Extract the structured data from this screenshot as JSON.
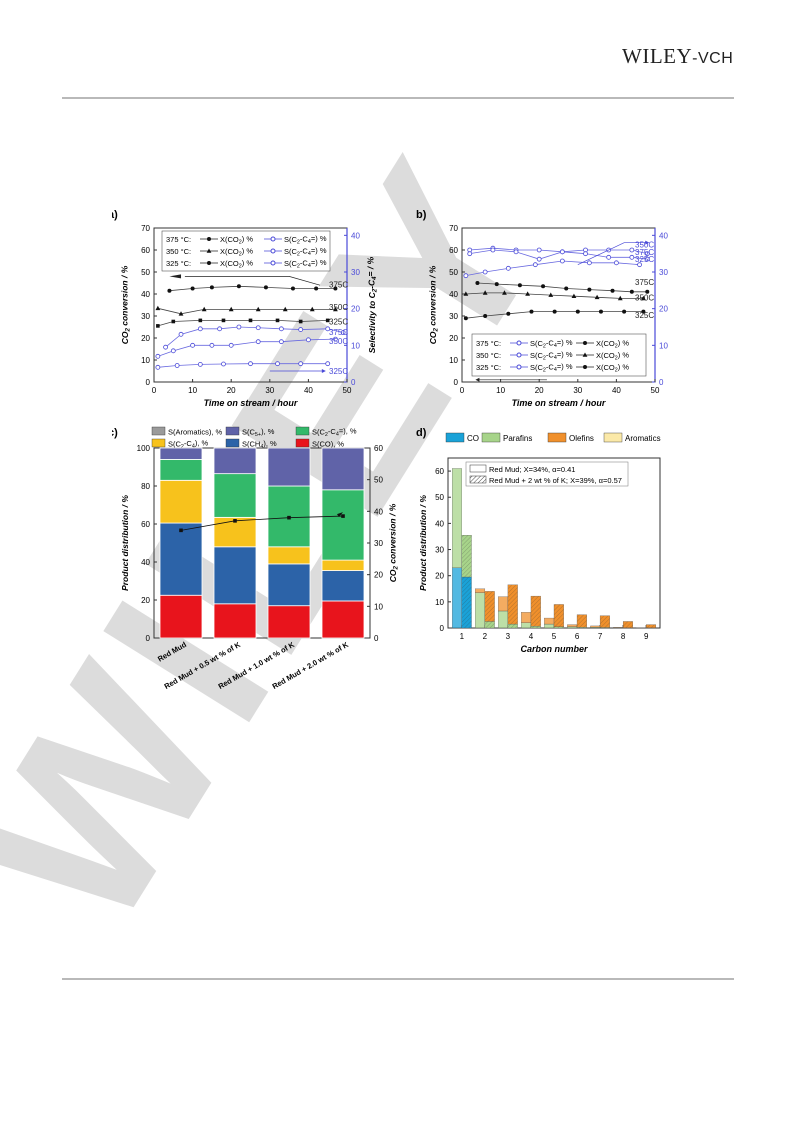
{
  "header": {
    "logo_main": "WILEY",
    "logo_suffix": "-VCH"
  },
  "watermark_text": "WILEY",
  "chart_data": [
    {
      "panel": "a)",
      "type": "line",
      "xlabel": "Time on stream / hour",
      "ylabel": "CO2 conversion / %",
      "y2label": "Selectivity to C2-C4= / %",
      "xlim": [
        0,
        50
      ],
      "ylim": [
        0,
        70
      ],
      "y2lim": [
        0,
        42
      ],
      "xticks": [
        "0",
        "10",
        "20",
        "30",
        "40",
        "50"
      ],
      "yticks": [
        "0",
        "10",
        "20",
        "30",
        "40",
        "50",
        "60",
        "70"
      ],
      "y2ticks": [
        "0",
        "10",
        "20",
        "30",
        "40"
      ],
      "legend": [
        {
          "temp": "375 °C:",
          "conv": "X(CO2) %",
          "sel": "S(C2-C4=) %"
        },
        {
          "temp": "350 °C:",
          "conv": "X(CO2) %",
          "sel": "S(C2-C4=) %"
        },
        {
          "temp": "325 °C:",
          "conv": "X(CO2) %",
          "sel": "S(C2-C4=) %"
        }
      ],
      "right_labels": [
        "375C",
        "350C",
        "325C",
        "375C",
        "350C",
        "325C"
      ],
      "series": [
        {
          "name": "X(CO2) 375",
          "axis": "left",
          "marker": "circle",
          "x": [
            4,
            10,
            15,
            22,
            29,
            36,
            42,
            47
          ],
          "y": [
            41.5,
            42.5,
            43,
            43.5,
            43,
            42.5,
            42.5,
            42.5
          ]
        },
        {
          "name": "X(CO2) 350",
          "axis": "left",
          "marker": "triangle",
          "x": [
            1,
            7,
            13,
            20,
            27,
            34,
            41,
            47
          ],
          "y": [
            33.5,
            31,
            33,
            33,
            33,
            33,
            33,
            33
          ]
        },
        {
          "name": "X(CO2) 325",
          "axis": "left",
          "marker": "square",
          "x": [
            1,
            5,
            12,
            18,
            25,
            32,
            38,
            45
          ],
          "y": [
            25.5,
            27.5,
            28,
            28,
            28,
            28,
            27.5,
            28
          ]
        },
        {
          "name": "S(C2-C4=) 375",
          "axis": "right",
          "x": [
            3,
            7,
            12,
            17,
            22,
            27,
            33,
            38,
            45,
            49
          ],
          "y": [
            9.5,
            13,
            14.5,
            14.5,
            15,
            14.8,
            14.5,
            14.3,
            14.5,
            13.5
          ]
        },
        {
          "name": "S(C2-C4=) 350",
          "axis": "right",
          "x": [
            1,
            5,
            10,
            15,
            20,
            27,
            33,
            40,
            47
          ],
          "y": [
            7,
            8.5,
            10,
            10,
            10,
            11,
            11,
            11.5,
            11.7
          ]
        },
        {
          "name": "S(C2-C4=) 325",
          "axis": "right",
          "x": [
            1,
            6,
            12,
            18,
            25,
            32,
            38,
            45
          ],
          "y": [
            4,
            4.5,
            4.8,
            4.9,
            5,
            5,
            5,
            5
          ]
        }
      ]
    },
    {
      "panel": "b)",
      "type": "line",
      "xlabel": "Time on stream / hour",
      "ylabel": "CO2 conversion / %",
      "y2label": "Selectivity to C2-C4= / %",
      "xlim": [
        0,
        50
      ],
      "ylim": [
        0,
        70
      ],
      "y2lim": [
        0,
        42
      ],
      "xticks": [
        "0",
        "10",
        "20",
        "30",
        "40",
        "50"
      ],
      "yticks": [
        "0",
        "10",
        "20",
        "30",
        "40",
        "50",
        "60",
        "70"
      ],
      "y2ticks": [
        "0",
        "10",
        "20",
        "30",
        "40"
      ],
      "legend": [
        {
          "temp": "375 °C:",
          "sel": "S(C2-C4=) %",
          "conv": "X(CO2) %"
        },
        {
          "temp": "350 °C:",
          "sel": "S(C2-C4=) %",
          "conv": "X(CO2) %"
        },
        {
          "temp": "325 °C:",
          "sel": "S(C2-C4=) %",
          "conv": "X(CO2) %"
        }
      ],
      "right_labels": [
        "350C",
        "375C",
        "325C",
        "375C",
        "350C",
        "325C"
      ],
      "series": [
        {
          "name": "S(C2-C4=) 350",
          "axis": "right",
          "x": [
            2,
            8,
            14,
            20,
            26,
            32,
            38,
            44,
            48
          ],
          "y": [
            36,
            36.5,
            36,
            36,
            35.5,
            36,
            36,
            36,
            35
          ]
        },
        {
          "name": "S(C2-C4=) 375",
          "axis": "right",
          "x": [
            2,
            8,
            14,
            20,
            26,
            32,
            38,
            44,
            48
          ],
          "y": [
            35,
            36,
            35.5,
            33.5,
            35.5,
            35,
            34,
            34,
            33.5
          ]
        },
        {
          "name": "S(C2-C4=) 325",
          "axis": "right",
          "x": [
            1,
            6,
            12,
            19,
            26,
            33,
            40,
            46
          ],
          "y": [
            29,
            30,
            31,
            32,
            33,
            32.5,
            32.5,
            32
          ]
        },
        {
          "name": "X(CO2) 375",
          "axis": "left",
          "marker": "circle",
          "x": [
            4,
            9,
            15,
            21,
            27,
            33,
            39,
            44,
            48
          ],
          "y": [
            45,
            44.5,
            44,
            43.5,
            42.5,
            42,
            41.5,
            41,
            41
          ]
        },
        {
          "name": "X(CO2) 350",
          "axis": "left",
          "marker": "triangle",
          "x": [
            1,
            6,
            11,
            17,
            23,
            29,
            35,
            41,
            47
          ],
          "y": [
            40,
            40.5,
            40.5,
            40,
            39.5,
            39,
            38.5,
            38,
            38
          ]
        },
        {
          "name": "X(CO2) 325",
          "axis": "left",
          "marker": "circle",
          "x": [
            1,
            6,
            12,
            18,
            24,
            30,
            36,
            42,
            47
          ],
          "y": [
            29,
            30,
            31,
            32,
            32,
            32,
            32,
            32,
            32
          ]
        }
      ]
    },
    {
      "panel": "c)",
      "type": "bar",
      "stacked": true,
      "ylabel": "Product distribution / %",
      "y2label": "CO2 conversion / %",
      "ylim": [
        0,
        100
      ],
      "y2lim": [
        0,
        60
      ],
      "yticks": [
        "0",
        "20",
        "40",
        "60",
        "80",
        "100"
      ],
      "y2ticks": [
        "0",
        "10",
        "20",
        "30",
        "40",
        "50",
        "60"
      ],
      "categories": [
        "Red Mud",
        "Red Mud + 0.5 wt % of K",
        "Red Mud + 1.0 wt % of K",
        "Red Mud + 2.0 wt % of K"
      ],
      "legend": [
        "S(Aromatics), %",
        "S(C5+), %",
        "S(C2-C4=), %",
        "S(C2-C4), %",
        "S(CH4), %",
        "S(CO), %"
      ],
      "colors": {
        "S(CO), %": "#e8141c",
        "S(CH4), %": "#2c63a8",
        "S(C2-C4), %": "#f7c21c",
        "S(C2-C4=), %": "#33b96a",
        "S(C5+), %": "#6063a8",
        "S(Aromatics), %": "#9a9a9a"
      },
      "series": [
        {
          "name": "S(CO), %",
          "values": [
            22.5,
            18,
            17,
            19.5
          ]
        },
        {
          "name": "S(CH4), %",
          "values": [
            38,
            30,
            22,
            16
          ]
        },
        {
          "name": "S(C2-C4), %",
          "values": [
            22.5,
            15.5,
            9,
            5.5
          ]
        },
        {
          "name": "S(C2-C4=), %",
          "values": [
            11,
            23,
            32,
            37
          ]
        },
        {
          "name": "S(C5+), %",
          "values": [
            6,
            13.5,
            20,
            22
          ]
        },
        {
          "name": "S(Aromatics), %",
          "values": [
            0,
            0,
            0,
            0
          ]
        }
      ],
      "conversion": [
        34,
        37,
        38,
        38.5
      ]
    },
    {
      "panel": "d)",
      "type": "bar",
      "xlabel": "Carbon number",
      "ylabel": "Product distribution / %",
      "ylim": [
        0,
        65
      ],
      "yticks": [
        "0",
        "10",
        "20",
        "30",
        "40",
        "50",
        "60"
      ],
      "categories": [
        "1",
        "2",
        "3",
        "4",
        "5",
        "6",
        "7",
        "8",
        "9"
      ],
      "legend": [
        "CO",
        "Parafins",
        "Olefins",
        "Aromatics"
      ],
      "legend2": [
        "Red Mud; X=34%, α=0.41",
        "Red Mud + 2 wt % of K; X=39%, α=0.57"
      ],
      "colors": {
        "CO": "#1aa2d8",
        "Parafins": "#a7d48a",
        "Olefins": "#f0902c",
        "Aromatics": "#fbe9a8"
      },
      "series": [
        {
          "name": "Red Mud - CO",
          "values": [
            23,
            0,
            0,
            0,
            0,
            0,
            0,
            0,
            0
          ]
        },
        {
          "name": "Red Mud - Parafins",
          "values": [
            38,
            13.5,
            6.5,
            2,
            1.5,
            0.5,
            0.3,
            0.1,
            0
          ]
        },
        {
          "name": "Red Mud - Olefins",
          "values": [
            0,
            1.5,
            5.5,
            4,
            2.3,
            0.8,
            0.5,
            0.2,
            0.1
          ]
        },
        {
          "name": "Red Mud + 2 wt % of K - CO",
          "values": [
            19.5,
            0,
            0,
            0,
            0,
            0,
            0,
            0,
            0
          ]
        },
        {
          "name": "Red Mud + 2 wt % of K - Parafins",
          "values": [
            16,
            2.5,
            1.5,
            0.7,
            0.5,
            0.3,
            0.2,
            0.1,
            0.1
          ]
        },
        {
          "name": "Red Mud + 2 wt % of K - Olefins",
          "values": [
            0,
            11.5,
            15,
            11.5,
            8.5,
            4.8,
            4.5,
            2.4,
            1.2
          ]
        }
      ]
    }
  ]
}
